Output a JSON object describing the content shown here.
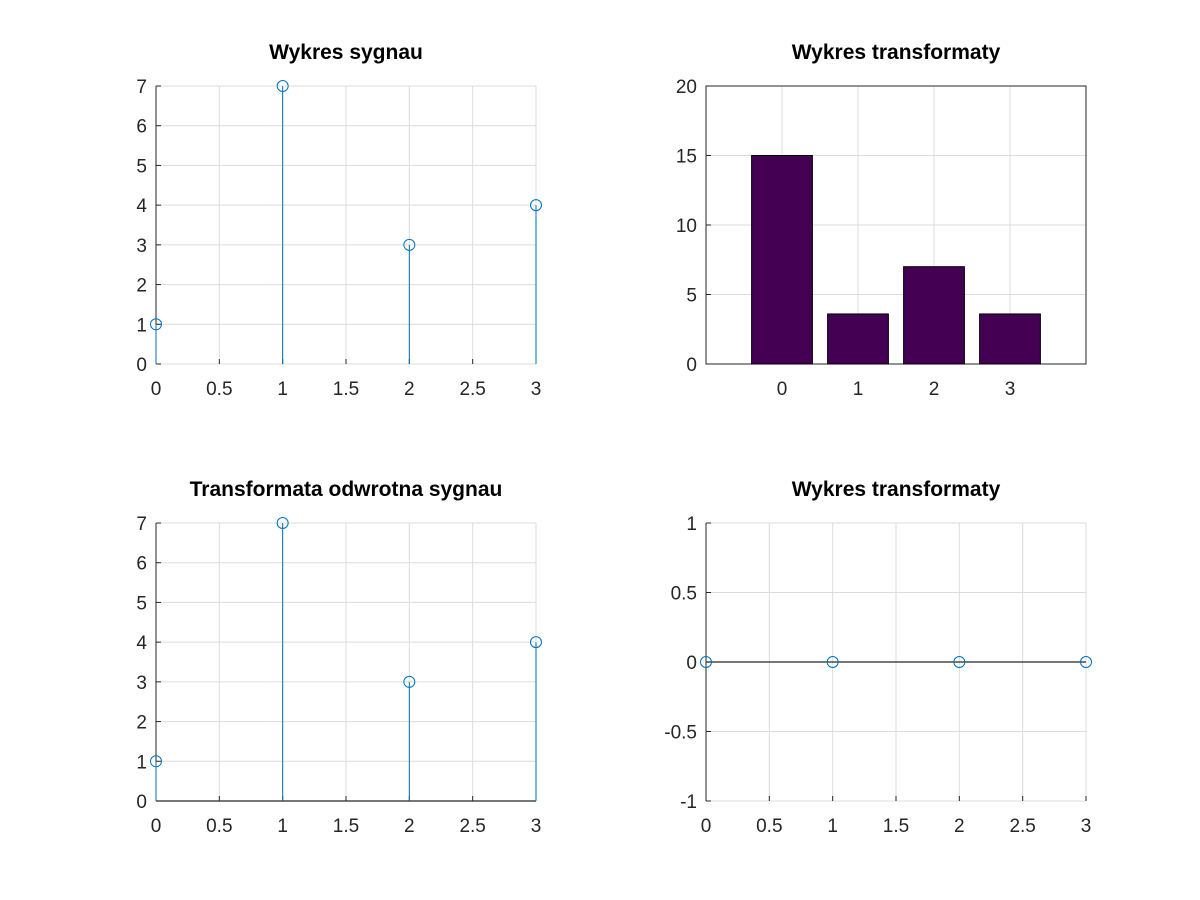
{
  "figure": {
    "background": "#ffffff"
  },
  "chart_data": [
    {
      "type": "stem",
      "title": "Wykres sygnau",
      "x": [
        0,
        1,
        2,
        3
      ],
      "y": [
        1,
        7,
        3,
        4
      ],
      "xlim": [
        0,
        3
      ],
      "ylim": [
        0,
        7
      ],
      "xticks": [
        0,
        0.5,
        1,
        1.5,
        2,
        2.5,
        3
      ],
      "yticks": [
        0,
        1,
        2,
        3,
        4,
        5,
        6,
        7
      ],
      "xtick_labels": [
        "0",
        "0.5",
        "1",
        "1.5",
        "2",
        "2.5",
        "3"
      ],
      "ytick_labels": [
        "0",
        "1",
        "2",
        "3",
        "4",
        "5",
        "6",
        "7"
      ],
      "grid": true,
      "box": false,
      "color": "#0072bd",
      "xlabel": "",
      "ylabel": ""
    },
    {
      "type": "bar",
      "title": "Wykres transformaty",
      "categories": [
        "0",
        "1",
        "2",
        "3"
      ],
      "values": [
        15,
        3.6,
        7,
        3.6
      ],
      "xlim": [
        -1,
        4
      ],
      "ylim": [
        0,
        20
      ],
      "yticks": [
        0,
        5,
        10,
        15,
        20
      ],
      "ytick_labels": [
        "0",
        "5",
        "10",
        "15",
        "20"
      ],
      "grid": true,
      "box": true,
      "color": "#440154",
      "xlabel": "",
      "ylabel": ""
    },
    {
      "type": "stem",
      "title": "Transformata odwrotna sygnau",
      "x": [
        0,
        1,
        2,
        3
      ],
      "y": [
        1,
        7,
        3,
        4
      ],
      "xlim": [
        0,
        3
      ],
      "ylim": [
        0,
        7
      ],
      "xticks": [
        0,
        0.5,
        1,
        1.5,
        2,
        2.5,
        3
      ],
      "yticks": [
        0,
        1,
        2,
        3,
        4,
        5,
        6,
        7
      ],
      "xtick_labels": [
        "0",
        "0.5",
        "1",
        "1.5",
        "2",
        "2.5",
        "3"
      ],
      "ytick_labels": [
        "0",
        "1",
        "2",
        "3",
        "4",
        "5",
        "6",
        "7"
      ],
      "grid": true,
      "box": false,
      "baseline": true,
      "color": "#0072bd",
      "xlabel": "",
      "ylabel": ""
    },
    {
      "type": "stem",
      "title": "Wykres transformaty",
      "x": [
        0,
        1,
        2,
        3
      ],
      "y": [
        0,
        0,
        0,
        0
      ],
      "xlim": [
        0,
        3
      ],
      "ylim": [
        -1,
        1
      ],
      "xticks": [
        0,
        0.5,
        1,
        1.5,
        2,
        2.5,
        3
      ],
      "yticks": [
        -1,
        -0.5,
        0,
        0.5,
        1
      ],
      "xtick_labels": [
        "0",
        "0.5",
        "1",
        "1.5",
        "2",
        "2.5",
        "3"
      ],
      "ytick_labels": [
        "-1",
        "-0.5",
        "0",
        "0.5",
        "1"
      ],
      "grid": true,
      "box": false,
      "baseline": true,
      "color": "#0072bd",
      "xlabel": "",
      "ylabel": ""
    }
  ]
}
